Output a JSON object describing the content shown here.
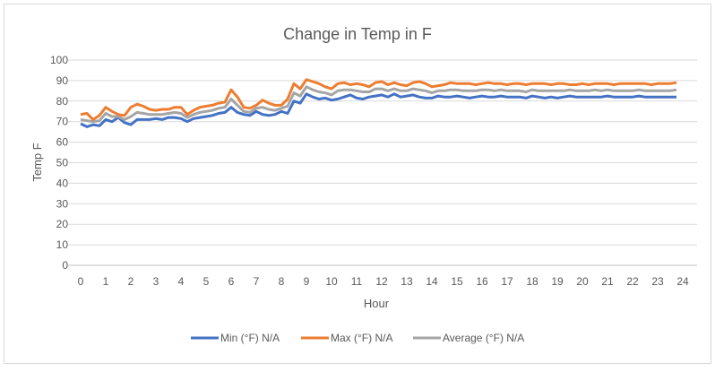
{
  "chart_data": {
    "type": "line",
    "title": "Change in Temp in F",
    "xlabel": "Hour",
    "ylabel": "Temp F",
    "xlim": [
      0,
      24
    ],
    "ylim": [
      0,
      100
    ],
    "x_ticks": [
      "0",
      "1",
      "2",
      "3",
      "4",
      "5",
      "6",
      "7",
      "8",
      "9",
      "10",
      "11",
      "12",
      "13",
      "14",
      "15",
      "16",
      "17",
      "18",
      "19",
      "20",
      "21",
      "22",
      "23",
      "24"
    ],
    "y_ticks": [
      "0",
      "10",
      "20",
      "30",
      "40",
      "50",
      "60",
      "70",
      "80",
      "90",
      "100"
    ],
    "grid": true,
    "legend_position": "bottom",
    "x_step_hours": 0.25,
    "series": [
      {
        "name": "Min (°F) N/A",
        "color": "#4472C4",
        "values": [
          69,
          67.5,
          68.5,
          68,
          71,
          70,
          72,
          69.5,
          68.5,
          71,
          71,
          71,
          71.5,
          71,
          72,
          72,
          71.5,
          70,
          71.5,
          72,
          72.5,
          73,
          74,
          74.5,
          77,
          74.5,
          73.5,
          73,
          75,
          73.5,
          73,
          73.5,
          75,
          74,
          80,
          79,
          83.5,
          82,
          81,
          81.5,
          80.5,
          81,
          82,
          83,
          81.5,
          81,
          82,
          82.5,
          83,
          82,
          83.5,
          82,
          82.5,
          83,
          82,
          81.5,
          81.5,
          82.5,
          82,
          82,
          82.5,
          82,
          81.5,
          82,
          82.5,
          82,
          82,
          82.5,
          82,
          82,
          82,
          81.5,
          82.5,
          82,
          81.5,
          82,
          81.5,
          82,
          82.5,
          82,
          82,
          82,
          82,
          82,
          82.5,
          82,
          82,
          82,
          82,
          82.5,
          82,
          82,
          82,
          82,
          82,
          82
        ]
      },
      {
        "name": "Max (°F) N/A",
        "color": "#ED7D31",
        "values": [
          73.5,
          74,
          71,
          73,
          77,
          75,
          73.5,
          73,
          77,
          78.5,
          77.5,
          76,
          75.5,
          76,
          76,
          77,
          77,
          73.5,
          75.5,
          77,
          77.5,
          78,
          79,
          79.5,
          85.5,
          82,
          77,
          76.5,
          78,
          80.5,
          79,
          78,
          78,
          81,
          88.5,
          86,
          90.5,
          89.5,
          88.5,
          87,
          86,
          88.5,
          89,
          88,
          88.5,
          88,
          87,
          89,
          89.5,
          88,
          89,
          88,
          87.5,
          89,
          89.5,
          88.5,
          87,
          87.5,
          88,
          89,
          88.5,
          88.5,
          88.5,
          88,
          88.5,
          89,
          88.5,
          88.5,
          88,
          88.5,
          88.5,
          88,
          88.5,
          88.5,
          88.5,
          88,
          88.5,
          88.5,
          88,
          88,
          88.5,
          88,
          88.5,
          88.5,
          88.5,
          88,
          88.5,
          88.5,
          88.5,
          88.5,
          88.5,
          88,
          88.5,
          88.5,
          88.5,
          89
        ]
      },
      {
        "name": "Average (°F) N/A",
        "color": "#A5A5A5",
        "values": [
          71,
          70.5,
          70,
          70.5,
          74,
          72.5,
          72.5,
          71,
          72.5,
          74.5,
          74,
          73.5,
          73.5,
          73.5,
          74,
          74.5,
          74,
          72,
          73.5,
          74.5,
          75,
          75.5,
          76.5,
          77,
          81,
          78,
          75,
          74.5,
          76.5,
          77,
          76,
          75.5,
          76.5,
          77.5,
          84,
          82.5,
          87,
          85.5,
          84.5,
          84,
          83,
          85,
          85.5,
          85.5,
          85,
          84.5,
          84.5,
          86,
          86,
          85,
          86,
          85,
          85,
          86,
          85.5,
          85,
          84,
          85,
          85,
          85.5,
          85.5,
          85,
          85,
          85,
          85.5,
          85.5,
          85,
          85.5,
          85,
          85,
          85,
          84.5,
          85.5,
          85,
          85,
          85,
          85,
          85,
          85.5,
          85,
          85,
          85,
          85.5,
          85,
          85.5,
          85,
          85,
          85,
          85,
          85.5,
          85,
          85,
          85,
          85,
          85,
          85.5
        ]
      }
    ]
  }
}
